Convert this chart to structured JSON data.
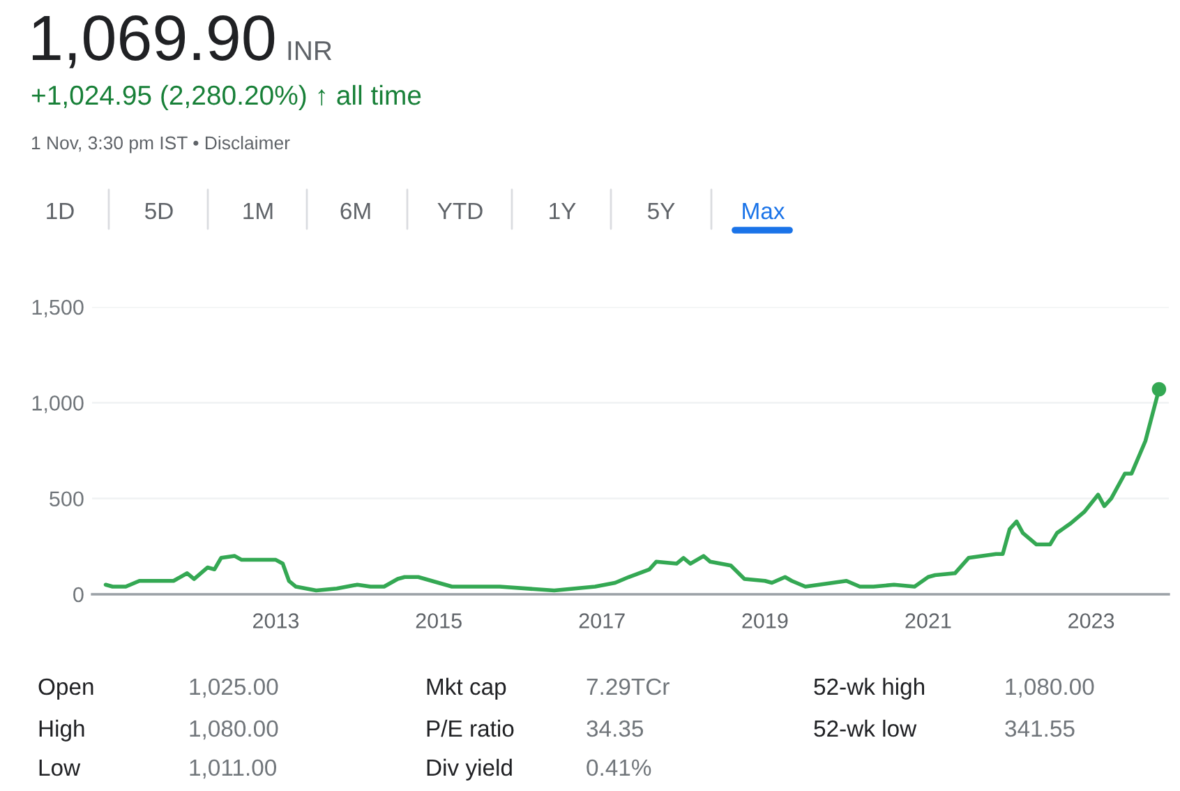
{
  "chart_data": {
    "type": "line",
    "title": "1,069.90",
    "annotations": [
      "INR",
      "+1,024.95 (2,280.20%) ↑ all time",
      "1 Nov, 3:30 pm IST • Disclaimer",
      "1D",
      "5D",
      "1M",
      "6M",
      "YTD",
      "1Y",
      "5Y",
      "Max",
      "Open",
      "1,025.00",
      "High",
      "1,080.00",
      "Low",
      "1,011.00",
      "Mkt cap",
      "7.29TCr",
      "P/E ratio",
      "34.35",
      "Div yield",
      "0.41%",
      "52-wk high",
      "1,080.00",
      "52-wk low",
      "341.55"
    ],
    "series": [
      {
        "color": "#34a853",
        "x": [
          "2010-12",
          "2011-01",
          "2011-03",
          "2011-05",
          "2011-08",
          "2011-10",
          "2011-12",
          "2012-01",
          "2012-03",
          "2012-04",
          "2012-05",
          "2012-07",
          "2012-08",
          "2012-11",
          "2013-01",
          "2013-02",
          "2013-03",
          "2013-04",
          "2013-07",
          "2013-10",
          "2014-01",
          "2014-03",
          "2014-05",
          "2014-07",
          "2014-08",
          "2014-10",
          "2015-03",
          "2015-10",
          "2016-06",
          "2016-12",
          "2017-03",
          "2017-05",
          "2017-08",
          "2017-09",
          "2017-12",
          "2018-01",
          "2018-02",
          "2018-04",
          "2018-05",
          "2018-08",
          "2018-10",
          "2019-01",
          "2019-02",
          "2019-04",
          "2019-05",
          "2019-07",
          "2020-01",
          "2020-03",
          "2020-05",
          "2020-08",
          "2020-11",
          "2021-01",
          "2021-02",
          "2021-05",
          "2021-07",
          "2021-11",
          "2021-12",
          "2022-01",
          "2022-02",
          "2022-03",
          "2022-05",
          "2022-07",
          "2022-08",
          "2022-10",
          "2022-12",
          "2023-02",
          "2023-03",
          "2023-04",
          "2023-06",
          "2023-07",
          "2023-09",
          "2023-11-01"
        ],
        "values": [
          50,
          40,
          40,
          70,
          70,
          70,
          110,
          80,
          140,
          130,
          190,
          200,
          180,
          180,
          180,
          160,
          70,
          40,
          20,
          30,
          50,
          40,
          40,
          80,
          90,
          90,
          40,
          40,
          20,
          40,
          60,
          90,
          130,
          170,
          160,
          190,
          160,
          200,
          170,
          150,
          80,
          70,
          60,
          90,
          70,
          40,
          70,
          40,
          40,
          50,
          40,
          90,
          100,
          110,
          190,
          210,
          210,
          340,
          380,
          320,
          260,
          260,
          320,
          370,
          430,
          520,
          460,
          500,
          630,
          630,
          800,
          1070
        ]
      },
      {
        "type": "scatter",
        "color": "#34a853",
        "x": [
          "2023-11-01"
        ],
        "values": [
          1070
        ]
      }
    ],
    "xlim": [
      "2010-10",
      "2023-12-15"
    ],
    "xticks": [
      "2013",
      "2015",
      "2017",
      "2019",
      "2021",
      "2023"
    ],
    "ylim": [
      0,
      1500
    ],
    "yticks": [
      {
        "value": 0,
        "label": "0"
      },
      {
        "value": 500,
        "label": "500"
      },
      {
        "value": 1000,
        "label": "1,000"
      },
      {
        "value": 1500,
        "label": "1,500"
      }
    ],
    "grid": "y",
    "legend": false
  }
}
